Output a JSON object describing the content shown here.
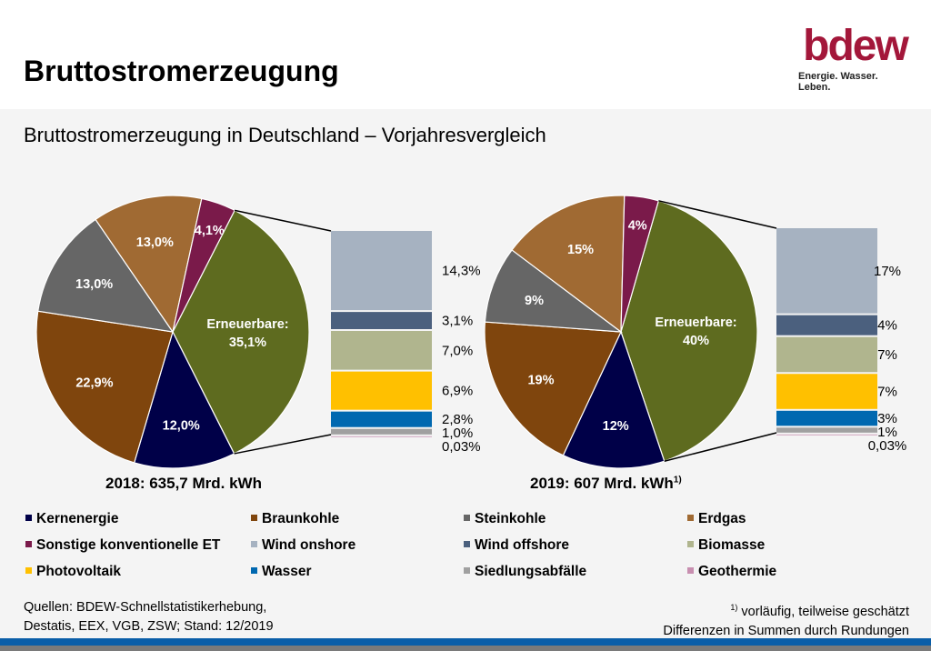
{
  "title": "Bruttostromerzeugung",
  "subtitle": "Bruttostromerzeugung in Deutschland – Vorjahresvergleich",
  "logo": {
    "mark": "bdew",
    "tagline": "Energie. Wasser. Leben."
  },
  "colors": {
    "Kernenergie": "#000048",
    "Braunkohle": "#7f450d",
    "Steinkohle": "#666666",
    "Erdgas": "#a06a33",
    "Sonstige konventionelle ET": "#7a1a4a",
    "Erneuerbare": "#5e6b1f",
    "Wind onshore": "#a6b2c1",
    "Wind offshore": "#4b607e",
    "Biomasse": "#b0b58e",
    "Photovoltaik": "#ffc000",
    "Wasser": "#0068b0",
    "Siedlungsabfälle": "#a0a0a0",
    "Geothermie": "#c88fb0"
  },
  "chart_data": [
    {
      "type": "pie",
      "title": "2018: 635,7 Mrd. kWh",
      "unit": "%",
      "slices": [
        {
          "name": "Erneuerbare",
          "value": 35.1,
          "label": "Erneuerbare:|35,1%"
        },
        {
          "name": "Kernenergie",
          "value": 12.0,
          "label": "12,0%"
        },
        {
          "name": "Braunkohle",
          "value": 22.9,
          "label": "22,9%"
        },
        {
          "name": "Steinkohle",
          "value": 13.0,
          "label": "13,0%"
        },
        {
          "name": "Erdgas",
          "value": 13.0,
          "label": "13,0%"
        },
        {
          "name": "Sonstige konventionelle ET",
          "value": 4.1,
          "label": "4,1%"
        }
      ],
      "breakdown": [
        {
          "name": "Wind onshore",
          "value": 14.3,
          "label": "14,3%"
        },
        {
          "name": "Wind offshore",
          "value": 3.1,
          "label": "3,1%"
        },
        {
          "name": "Biomasse",
          "value": 7.0,
          "label": "7,0%"
        },
        {
          "name": "Photovoltaik",
          "value": 6.9,
          "label": "6,9%"
        },
        {
          "name": "Wasser",
          "value": 2.8,
          "label": "2,8%"
        },
        {
          "name": "Siedlungsabfälle",
          "value": 1.0,
          "label": "1,0%"
        },
        {
          "name": "Geothermie",
          "value": 0.03,
          "label": "0,03%"
        }
      ]
    },
    {
      "type": "pie",
      "title": "2019: 607 Mrd. kWh",
      "title_sup": "1)",
      "unit": "%",
      "slices": [
        {
          "name": "Erneuerbare",
          "value": 40,
          "label": "Erneuerbare:|40%"
        },
        {
          "name": "Kernenergie",
          "value": 12,
          "label": "12%"
        },
        {
          "name": "Braunkohle",
          "value": 19,
          "label": "19%"
        },
        {
          "name": "Steinkohle",
          "value": 9,
          "label": "9%"
        },
        {
          "name": "Erdgas",
          "value": 15,
          "label": "15%"
        },
        {
          "name": "Sonstige konventionelle ET",
          "value": 4,
          "label": "4%"
        }
      ],
      "breakdown": [
        {
          "name": "Wind onshore",
          "value": 17,
          "label": "17%"
        },
        {
          "name": "Wind offshore",
          "value": 4,
          "label": "4%"
        },
        {
          "name": "Biomasse",
          "value": 7,
          "label": "7%"
        },
        {
          "name": "Photovoltaik",
          "value": 7,
          "label": "7%"
        },
        {
          "name": "Wasser",
          "value": 3,
          "label": "3%"
        },
        {
          "name": "Siedlungsabfälle",
          "value": 1,
          "label": "1%"
        },
        {
          "name": "Geothermie",
          "value": 0.03,
          "label": "0,03%"
        }
      ]
    }
  ],
  "legend": [
    "Kernenergie",
    "Braunkohle",
    "Steinkohle",
    "Erdgas",
    "Sonstige konventionelle ET",
    "Wind onshore",
    "Wind offshore",
    "Biomasse",
    "Photovoltaik",
    "Wasser",
    "Siedlungsabfälle",
    "Geothermie"
  ],
  "footer": {
    "sources_line1": "Quellen: BDEW-Schnellstatistikerhebung,",
    "sources_line2": "Destatis, EEX, VGB, ZSW; Stand: 12/2019",
    "note_sup": "1)",
    "note_line1": " vorläufig, teilweise geschätzt",
    "note_line2": "Differenzen in Summen durch Rundungen"
  }
}
